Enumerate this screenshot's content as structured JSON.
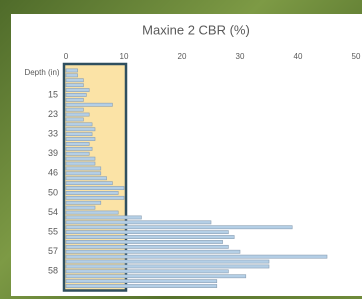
{
  "chart_data": {
    "type": "barh",
    "title": "Maxine 2 CBR (%)",
    "ylabel": "Depth (in)",
    "categories": [
      null,
      null,
      null,
      null,
      null,
      "15",
      null,
      null,
      null,
      "23",
      null,
      null,
      null,
      "33",
      null,
      null,
      null,
      "39",
      null,
      null,
      null,
      "46",
      null,
      null,
      null,
      "50",
      null,
      null,
      null,
      "54",
      null,
      null,
      null,
      "55",
      null,
      null,
      null,
      "57",
      null,
      null,
      null,
      "58",
      null,
      null,
      null
    ],
    "values": [
      2,
      2,
      3,
      3,
      4,
      3.5,
      3,
      8,
      3,
      4,
      3,
      4.5,
      5,
      4.5,
      5,
      4,
      4.5,
      4,
      5,
      5,
      6,
      6,
      7,
      8,
      10,
      9,
      10,
      6,
      5,
      9,
      13,
      25,
      39,
      28,
      29,
      27,
      28,
      30,
      45,
      35,
      35,
      28,
      31,
      26,
      26
    ],
    "color": "#b4cfe6",
    "xlim": [
      0,
      50
    ],
    "xticks": [
      0,
      10,
      20,
      30,
      40,
      50
    ],
    "highlight": [
      0,
      10
    ],
    "highlight_color": "#fbe3a6",
    "grid": false
  }
}
